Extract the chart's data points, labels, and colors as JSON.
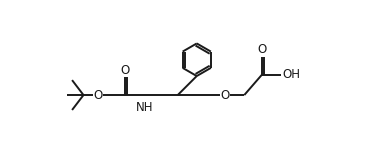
{
  "bg_color": "#ffffff",
  "line_color": "#1a1a1a",
  "line_width": 1.4,
  "font_size": 8.5,
  "figsize": [
    3.68,
    1.64
  ],
  "dpi": 100,
  "xlim": [
    0,
    10.5
  ],
  "ylim": [
    0,
    4.5
  ]
}
